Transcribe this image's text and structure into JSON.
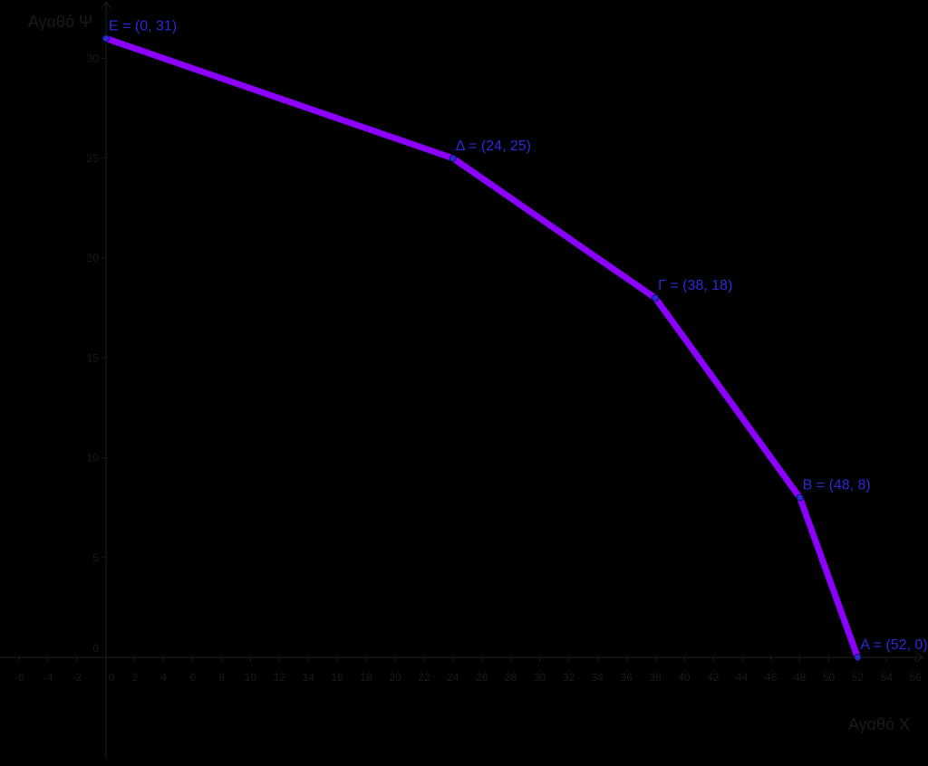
{
  "chart_data": {
    "type": "line",
    "xlabel": "Αγαθό Χ",
    "ylabel": "Αγαθό Ψ",
    "xlim": [
      -7,
      57
    ],
    "ylim": [
      -5,
      31
    ],
    "x_ticks": [
      "-6",
      "-4",
      "-2",
      "0",
      "2",
      "4",
      "6",
      "8",
      "10",
      "12",
      "14",
      "16",
      "18",
      "20",
      "22",
      "24",
      "26",
      "28",
      "30",
      "32",
      "34",
      "36",
      "38",
      "40",
      "42",
      "44",
      "46",
      "48",
      "50",
      "52",
      "54",
      "56"
    ],
    "y_ticks": [
      "0",
      "5",
      "10",
      "15",
      "20",
      "25",
      "30"
    ],
    "grid": false,
    "series": [
      {
        "color": "#8b00ff",
        "points": [
          {
            "x": 0,
            "y": 31,
            "label": "Ε = (0, 31)"
          },
          {
            "x": 24,
            "y": 25,
            "label": "Δ = (24, 25)"
          },
          {
            "x": 38,
            "y": 18,
            "label": "Γ = (38, 18)"
          },
          {
            "x": 48,
            "y": 8,
            "label": "Β = (48, 8)"
          },
          {
            "x": 52,
            "y": 0,
            "label": "Α = (52, 0)"
          }
        ]
      }
    ],
    "colors": {
      "background": "#000000",
      "line": "#8b00ff",
      "point": "#2a2ad8",
      "point_label": "#2a2ad8",
      "axis": "#1a1a1a"
    }
  }
}
